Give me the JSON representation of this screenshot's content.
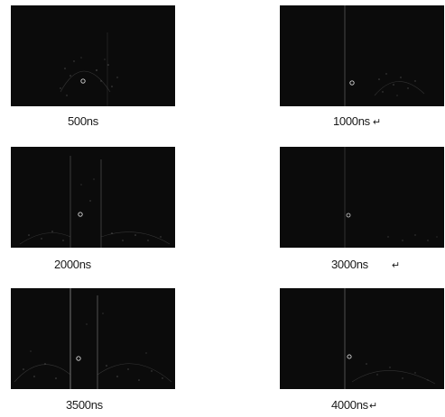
{
  "figure": {
    "panels": [
      {
        "label": "500ns",
        "mark": ""
      },
      {
        "label": "1000ns",
        "mark": "↵"
      },
      {
        "label": "2000ns",
        "mark": ""
      },
      {
        "label": "3000ns",
        "mark": "↵"
      },
      {
        "label": "3500ns",
        "mark": ""
      },
      {
        "label": "4000ns",
        "mark": "↵"
      }
    ]
  },
  "colors": {
    "panel_background": "#0b0b0b",
    "wave_light": "#9a9a9a",
    "caption_text": "#1a1a1a"
  }
}
